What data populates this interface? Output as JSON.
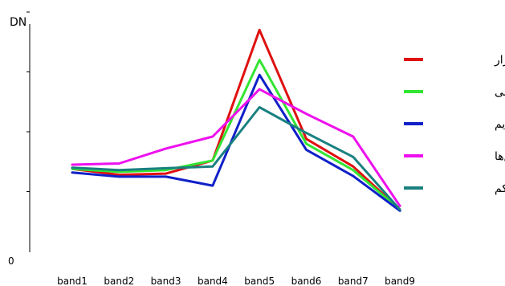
{
  "chart_data": {
    "type": "line",
    "title": "",
    "xlabel": "",
    "ylabel": "DN",
    "origin_label": "0",
    "categories": [
      "band1",
      "band2",
      "band3",
      "band4",
      "band5",
      "band6",
      "band7",
      "band9"
    ],
    "ylim": [
      0,
      4
    ],
    "ytick_count": 4,
    "grid": false,
    "legend_position": "right",
    "series": [
      {
        "name": "یونجه‌زار",
        "color": "#e01010",
        "values": [
          1.38,
          1.28,
          1.3,
          1.52,
          3.7,
          1.88,
          1.42,
          0.7
        ]
      },
      {
        "name": "گندم‌زار آبی",
        "color": "#33e533",
        "values": [
          1.38,
          1.33,
          1.36,
          1.52,
          3.2,
          1.8,
          1.36,
          0.7
        ]
      },
      {
        "name": "گندم‌زار دیم",
        "color": "#1020c8",
        "values": [
          1.32,
          1.25,
          1.25,
          1.1,
          2.95,
          1.7,
          1.26,
          0.68
        ]
      },
      {
        "name": "باغ‌ها",
        "color": "#ee10ee",
        "values": [
          1.45,
          1.47,
          1.72,
          1.92,
          2.71,
          2.3,
          1.92,
          0.76
        ]
      },
      {
        "name": "مراتع متراکم",
        "color": "#1a8080",
        "values": [
          1.4,
          1.36,
          1.39,
          1.42,
          2.41,
          1.98,
          1.58,
          0.7
        ]
      }
    ]
  }
}
